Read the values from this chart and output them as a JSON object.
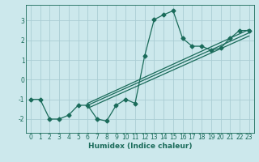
{
  "xlabel": "Humidex (Indice chaleur)",
  "bg_color": "#cce8ec",
  "grid_color": "#aacdd4",
  "line_color": "#1a6b5a",
  "xlim": [
    -0.5,
    23.5
  ],
  "ylim": [
    -2.7,
    3.8
  ],
  "yticks": [
    -2,
    -1,
    0,
    1,
    2,
    3
  ],
  "xticks": [
    0,
    1,
    2,
    3,
    4,
    5,
    6,
    7,
    8,
    9,
    10,
    11,
    12,
    13,
    14,
    15,
    16,
    17,
    18,
    19,
    20,
    21,
    22,
    23
  ],
  "main_x": [
    0,
    1,
    2,
    3,
    4,
    5,
    6,
    7,
    8,
    9,
    10,
    11,
    12,
    13,
    14,
    15,
    16,
    17,
    18,
    19,
    20,
    21,
    22,
    23
  ],
  "main_y": [
    -1.0,
    -1.0,
    -2.0,
    -2.0,
    -1.8,
    -1.3,
    -1.3,
    -2.0,
    -2.1,
    -1.3,
    -1.0,
    -1.2,
    1.2,
    3.05,
    3.3,
    3.5,
    2.1,
    1.7,
    1.7,
    1.5,
    1.6,
    2.1,
    2.5,
    2.5
  ],
  "trend1_x": [
    6,
    23
  ],
  "trend1_y": [
    -1.2,
    2.55
  ],
  "trend2_x": [
    6,
    23
  ],
  "trend2_y": [
    -1.3,
    2.38
  ],
  "trend3_x": [
    6,
    23
  ],
  "trend3_y": [
    -1.45,
    2.22
  ],
  "markersize": 2.5,
  "linewidth": 0.9,
  "tick_fontsize": 5.5,
  "xlabel_fontsize": 6.5
}
